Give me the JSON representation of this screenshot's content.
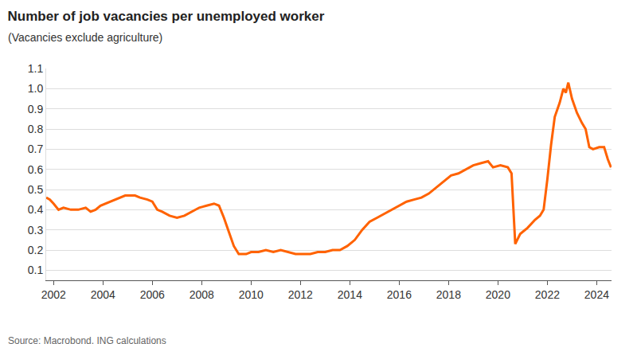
{
  "chart_data": {
    "type": "line",
    "title": "Number of job vacancies per unemployed worker",
    "subtitle": "(Vacancies exclude agriculture)",
    "source": "Source: Macrobond, ING calculations",
    "color": "#ff6200",
    "grid": true,
    "xlim": [
      2001.7,
      2024.6
    ],
    "xticks": [
      2002,
      2004,
      2006,
      2008,
      2010,
      2012,
      2014,
      2016,
      2018,
      2020,
      2022,
      2024
    ],
    "ylim": [
      0.05,
      1.1
    ],
    "yticks": [
      0.1,
      0.2,
      0.3,
      0.4,
      0.5,
      0.6,
      0.7,
      0.8,
      0.9,
      {
        "value": 1,
        "label": "1.0"
      },
      1.1
    ],
    "x": [
      2001.7,
      2001.85,
      2002.0,
      2002.2,
      2002.4,
      2002.7,
      2003.0,
      2003.3,
      2003.5,
      2003.7,
      2003.9,
      2004.3,
      2004.7,
      2004.9,
      2005.3,
      2005.5,
      2005.8,
      2006.0,
      2006.2,
      2006.4,
      2006.7,
      2007.0,
      2007.3,
      2007.6,
      2007.9,
      2008.2,
      2008.5,
      2008.7,
      2008.9,
      2009.1,
      2009.3,
      2009.5,
      2009.8,
      2010.0,
      2010.3,
      2010.6,
      2010.9,
      2011.2,
      2011.5,
      2011.8,
      2012.1,
      2012.4,
      2012.7,
      2013.0,
      2013.3,
      2013.6,
      2013.9,
      2014.2,
      2014.5,
      2014.8,
      2015.1,
      2015.4,
      2015.7,
      2016.0,
      2016.3,
      2016.6,
      2016.9,
      2017.2,
      2017.5,
      2017.8,
      2018.1,
      2018.4,
      2018.7,
      2019.0,
      2019.3,
      2019.6,
      2019.8,
      2020.1,
      2020.4,
      2020.55,
      2020.7,
      2020.9,
      2021.2,
      2021.5,
      2021.7,
      2021.85,
      2022.0,
      2022.15,
      2022.3,
      2022.5,
      2022.65,
      2022.75,
      2022.85,
      2023.0,
      2023.2,
      2023.4,
      2023.55,
      2023.7,
      2023.85,
      2024.1,
      2024.3,
      2024.45,
      2024.58
    ],
    "values": [
      0.46,
      0.45,
      0.43,
      0.4,
      0.41,
      0.4,
      0.4,
      0.41,
      0.39,
      0.4,
      0.42,
      0.44,
      0.46,
      0.47,
      0.47,
      0.46,
      0.45,
      0.44,
      0.4,
      0.39,
      0.37,
      0.36,
      0.37,
      0.39,
      0.41,
      0.42,
      0.43,
      0.42,
      0.36,
      0.29,
      0.22,
      0.18,
      0.18,
      0.19,
      0.19,
      0.2,
      0.19,
      0.2,
      0.19,
      0.18,
      0.18,
      0.18,
      0.19,
      0.19,
      0.2,
      0.2,
      0.22,
      0.25,
      0.3,
      0.34,
      0.36,
      0.38,
      0.4,
      0.42,
      0.44,
      0.45,
      0.46,
      0.48,
      0.51,
      0.54,
      0.57,
      0.58,
      0.6,
      0.62,
      0.63,
      0.64,
      0.61,
      0.62,
      0.61,
      0.58,
      0.23,
      0.28,
      0.31,
      0.35,
      0.37,
      0.4,
      0.55,
      0.72,
      0.86,
      0.93,
      1.0,
      0.98,
      1.03,
      0.95,
      0.88,
      0.83,
      0.8,
      0.71,
      0.7,
      0.71,
      0.71,
      0.65,
      0.61
    ]
  }
}
